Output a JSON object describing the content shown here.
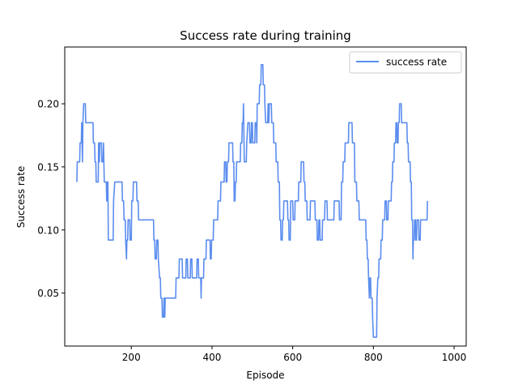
{
  "chart_data": {
    "type": "line",
    "title": "Success rate during training",
    "xlabel": "Episode",
    "ylabel": "Success rate",
    "xlim": [
      35,
      1030
    ],
    "ylim": [
      0.008,
      0.245
    ],
    "xticks": [
      200,
      400,
      600,
      800,
      1000
    ],
    "yticks": [
      0.05,
      0.1,
      0.15,
      0.2
    ],
    "xtick_labels": [
      "200",
      "400",
      "600",
      "800",
      "1000"
    ],
    "ytick_labels": [
      "0.05",
      "0.10",
      "0.15",
      "0.20"
    ],
    "grid": false,
    "legend_position": "top-right",
    "series": [
      {
        "name": "success rate",
        "color": "#5b8def",
        "points": [
          [
            65,
            0.138
          ],
          [
            66,
            0.154
          ],
          [
            72,
            0.154
          ],
          [
            73,
            0.169
          ],
          [
            76,
            0.169
          ],
          [
            77,
            0.185
          ],
          [
            79,
            0.154
          ],
          [
            80,
            0.185
          ],
          [
            82,
            0.2
          ],
          [
            86,
            0.2
          ],
          [
            87,
            0.185
          ],
          [
            105,
            0.185
          ],
          [
            106,
            0.169
          ],
          [
            109,
            0.169
          ],
          [
            110,
            0.154
          ],
          [
            112,
            0.154
          ],
          [
            113,
            0.138
          ],
          [
            118,
            0.138
          ],
          [
            119,
            0.169
          ],
          [
            121,
            0.154
          ],
          [
            122,
            0.169
          ],
          [
            126,
            0.169
          ],
          [
            127,
            0.154
          ],
          [
            130,
            0.154
          ],
          [
            131,
            0.169
          ],
          [
            133,
            0.138
          ],
          [
            138,
            0.138
          ],
          [
            139,
            0.123
          ],
          [
            140,
            0.138
          ],
          [
            142,
            0.138
          ],
          [
            143,
            0.092
          ],
          [
            155,
            0.092
          ],
          [
            156,
            0.123
          ],
          [
            159,
            0.138
          ],
          [
            177,
            0.138
          ],
          [
            178,
            0.123
          ],
          [
            181,
            0.123
          ],
          [
            182,
            0.108
          ],
          [
            185,
            0.108
          ],
          [
            186,
            0.092
          ],
          [
            188,
            0.077
          ],
          [
            189,
            0.092
          ],
          [
            191,
            0.092
          ],
          [
            192,
            0.108
          ],
          [
            196,
            0.108
          ],
          [
            197,
            0.092
          ],
          [
            200,
            0.092
          ],
          [
            201,
            0.123
          ],
          [
            204,
            0.123
          ],
          [
            205,
            0.138
          ],
          [
            213,
            0.138
          ],
          [
            214,
            0.123
          ],
          [
            217,
            0.123
          ],
          [
            218,
            0.108
          ],
          [
            255,
            0.108
          ],
          [
            256,
            0.092
          ],
          [
            258,
            0.092
          ],
          [
            259,
            0.077
          ],
          [
            262,
            0.077
          ],
          [
            263,
            0.092
          ],
          [
            266,
            0.092
          ],
          [
            267,
            0.077
          ],
          [
            270,
            0.062
          ],
          [
            272,
            0.062
          ],
          [
            273,
            0.046
          ],
          [
            276,
            0.046
          ],
          [
            277,
            0.031
          ],
          [
            280,
            0.031
          ],
          [
            281,
            0.046
          ],
          [
            283,
            0.031
          ],
          [
            284,
            0.046
          ],
          [
            310,
            0.046
          ],
          [
            311,
            0.062
          ],
          [
            318,
            0.062
          ],
          [
            319,
            0.077
          ],
          [
            326,
            0.077
          ],
          [
            327,
            0.062
          ],
          [
            335,
            0.062
          ],
          [
            336,
            0.077
          ],
          [
            339,
            0.077
          ],
          [
            340,
            0.062
          ],
          [
            346,
            0.062
          ],
          [
            347,
            0.077
          ],
          [
            350,
            0.077
          ],
          [
            351,
            0.062
          ],
          [
            362,
            0.062
          ],
          [
            363,
            0.077
          ],
          [
            366,
            0.077
          ],
          [
            367,
            0.062
          ],
          [
            372,
            0.062
          ],
          [
            373,
            0.046
          ],
          [
            374,
            0.062
          ],
          [
            379,
            0.062
          ],
          [
            380,
            0.077
          ],
          [
            385,
            0.077
          ],
          [
            386,
            0.092
          ],
          [
            395,
            0.092
          ],
          [
            396,
            0.077
          ],
          [
            398,
            0.077
          ],
          [
            399,
            0.092
          ],
          [
            403,
            0.092
          ],
          [
            404,
            0.108
          ],
          [
            414,
            0.108
          ],
          [
            415,
            0.123
          ],
          [
            421,
            0.123
          ],
          [
            422,
            0.138
          ],
          [
            430,
            0.138
          ],
          [
            431,
            0.154
          ],
          [
            434,
            0.154
          ],
          [
            435,
            0.138
          ],
          [
            437,
            0.138
          ],
          [
            438,
            0.154
          ],
          [
            441,
            0.154
          ],
          [
            442,
            0.169
          ],
          [
            451,
            0.169
          ],
          [
            452,
            0.154
          ],
          [
            454,
            0.154
          ],
          [
            455,
            0.123
          ],
          [
            457,
            0.123
          ],
          [
            458,
            0.138
          ],
          [
            460,
            0.138
          ],
          [
            461,
            0.154
          ],
          [
            470,
            0.154
          ],
          [
            471,
            0.169
          ],
          [
            474,
            0.169
          ],
          [
            475,
            0.185
          ],
          [
            477,
            0.185
          ],
          [
            478,
            0.2
          ],
          [
            480,
            0.154
          ],
          [
            485,
            0.154
          ],
          [
            486,
            0.169
          ],
          [
            489,
            0.185
          ],
          [
            493,
            0.185
          ],
          [
            494,
            0.169
          ],
          [
            497,
            0.169
          ],
          [
            498,
            0.185
          ],
          [
            500,
            0.185
          ],
          [
            501,
            0.169
          ],
          [
            506,
            0.169
          ],
          [
            507,
            0.185
          ],
          [
            510,
            0.185
          ],
          [
            511,
            0.169
          ],
          [
            512,
            0.2
          ],
          [
            517,
            0.2
          ],
          [
            518,
            0.215
          ],
          [
            521,
            0.215
          ],
          [
            522,
            0.231
          ],
          [
            526,
            0.231
          ],
          [
            527,
            0.215
          ],
          [
            530,
            0.215
          ],
          [
            531,
            0.2
          ],
          [
            533,
            0.185
          ],
          [
            538,
            0.185
          ],
          [
            539,
            0.2
          ],
          [
            541,
            0.185
          ],
          [
            542,
            0.2
          ],
          [
            547,
            0.2
          ],
          [
            548,
            0.185
          ],
          [
            552,
            0.185
          ],
          [
            553,
            0.169
          ],
          [
            558,
            0.169
          ],
          [
            559,
            0.154
          ],
          [
            563,
            0.154
          ],
          [
            564,
            0.138
          ],
          [
            567,
            0.138
          ],
          [
            568,
            0.108
          ],
          [
            570,
            0.108
          ],
          [
            571,
            0.092
          ],
          [
            574,
            0.092
          ],
          [
            575,
            0.108
          ],
          [
            577,
            0.108
          ],
          [
            578,
            0.123
          ],
          [
            587,
            0.123
          ],
          [
            588,
            0.108
          ],
          [
            590,
            0.108
          ],
          [
            591,
            0.092
          ],
          [
            594,
            0.092
          ],
          [
            595,
            0.123
          ],
          [
            600,
            0.123
          ],
          [
            601,
            0.108
          ],
          [
            605,
            0.108
          ],
          [
            606,
            0.123
          ],
          [
            614,
            0.123
          ],
          [
            615,
            0.138
          ],
          [
            620,
            0.138
          ],
          [
            621,
            0.154
          ],
          [
            627,
            0.154
          ],
          [
            628,
            0.138
          ],
          [
            630,
            0.138
          ],
          [
            631,
            0.123
          ],
          [
            635,
            0.123
          ],
          [
            636,
            0.108
          ],
          [
            643,
            0.108
          ],
          [
            644,
            0.123
          ],
          [
            655,
            0.123
          ],
          [
            656,
            0.108
          ],
          [
            660,
            0.108
          ],
          [
            661,
            0.092
          ],
          [
            664,
            0.092
          ],
          [
            665,
            0.108
          ],
          [
            667,
            0.108
          ],
          [
            668,
            0.092
          ],
          [
            673,
            0.092
          ],
          [
            674,
            0.108
          ],
          [
            679,
            0.108
          ],
          [
            680,
            0.123
          ],
          [
            685,
            0.123
          ],
          [
            686,
            0.108
          ],
          [
            702,
            0.108
          ],
          [
            703,
            0.123
          ],
          [
            715,
            0.123
          ],
          [
            716,
            0.108
          ],
          [
            720,
            0.108
          ],
          [
            721,
            0.138
          ],
          [
            724,
            0.138
          ],
          [
            725,
            0.154
          ],
          [
            729,
            0.154
          ],
          [
            730,
            0.169
          ],
          [
            738,
            0.169
          ],
          [
            739,
            0.185
          ],
          [
            747,
            0.185
          ],
          [
            748,
            0.169
          ],
          [
            753,
            0.169
          ],
          [
            754,
            0.138
          ],
          [
            758,
            0.138
          ],
          [
            759,
            0.123
          ],
          [
            764,
            0.123
          ],
          [
            765,
            0.108
          ],
          [
            781,
            0.108
          ],
          [
            782,
            0.092
          ],
          [
            784,
            0.092
          ],
          [
            785,
            0.077
          ],
          [
            787,
            0.077
          ],
          [
            788,
            0.062
          ],
          [
            790,
            0.046
          ],
          [
            791,
            0.062
          ],
          [
            793,
            0.062
          ],
          [
            794,
            0.046
          ],
          [
            797,
            0.046
          ],
          [
            798,
            0.031
          ],
          [
            800,
            0.015
          ],
          [
            808,
            0.015
          ],
          [
            809,
            0.046
          ],
          [
            811,
            0.062
          ],
          [
            813,
            0.062
          ],
          [
            814,
            0.077
          ],
          [
            818,
            0.077
          ],
          [
            819,
            0.092
          ],
          [
            822,
            0.092
          ],
          [
            823,
            0.108
          ],
          [
            828,
            0.108
          ],
          [
            829,
            0.123
          ],
          [
            832,
            0.123
          ],
          [
            833,
            0.108
          ],
          [
            836,
            0.108
          ],
          [
            837,
            0.123
          ],
          [
            844,
            0.123
          ],
          [
            845,
            0.138
          ],
          [
            847,
            0.138
          ],
          [
            848,
            0.154
          ],
          [
            851,
            0.154
          ],
          [
            852,
            0.169
          ],
          [
            855,
            0.169
          ],
          [
            856,
            0.185
          ],
          [
            858,
            0.185
          ],
          [
            859,
            0.169
          ],
          [
            861,
            0.169
          ],
          [
            862,
            0.185
          ],
          [
            864,
            0.185
          ],
          [
            865,
            0.2
          ],
          [
            869,
            0.2
          ],
          [
            870,
            0.185
          ],
          [
            883,
            0.185
          ],
          [
            884,
            0.169
          ],
          [
            886,
            0.169
          ],
          [
            887,
            0.154
          ],
          [
            891,
            0.154
          ],
          [
            892,
            0.138
          ],
          [
            894,
            0.138
          ],
          [
            895,
            0.108
          ],
          [
            897,
            0.108
          ],
          [
            898,
            0.077
          ],
          [
            899,
            0.092
          ],
          [
            901,
            0.092
          ],
          [
            902,
            0.108
          ],
          [
            904,
            0.108
          ],
          [
            905,
            0.092
          ],
          [
            907,
            0.092
          ],
          [
            908,
            0.108
          ],
          [
            912,
            0.108
          ],
          [
            913,
            0.092
          ],
          [
            916,
            0.092
          ],
          [
            917,
            0.108
          ],
          [
            933,
            0.108
          ],
          [
            934,
            0.123
          ]
        ]
      }
    ]
  }
}
